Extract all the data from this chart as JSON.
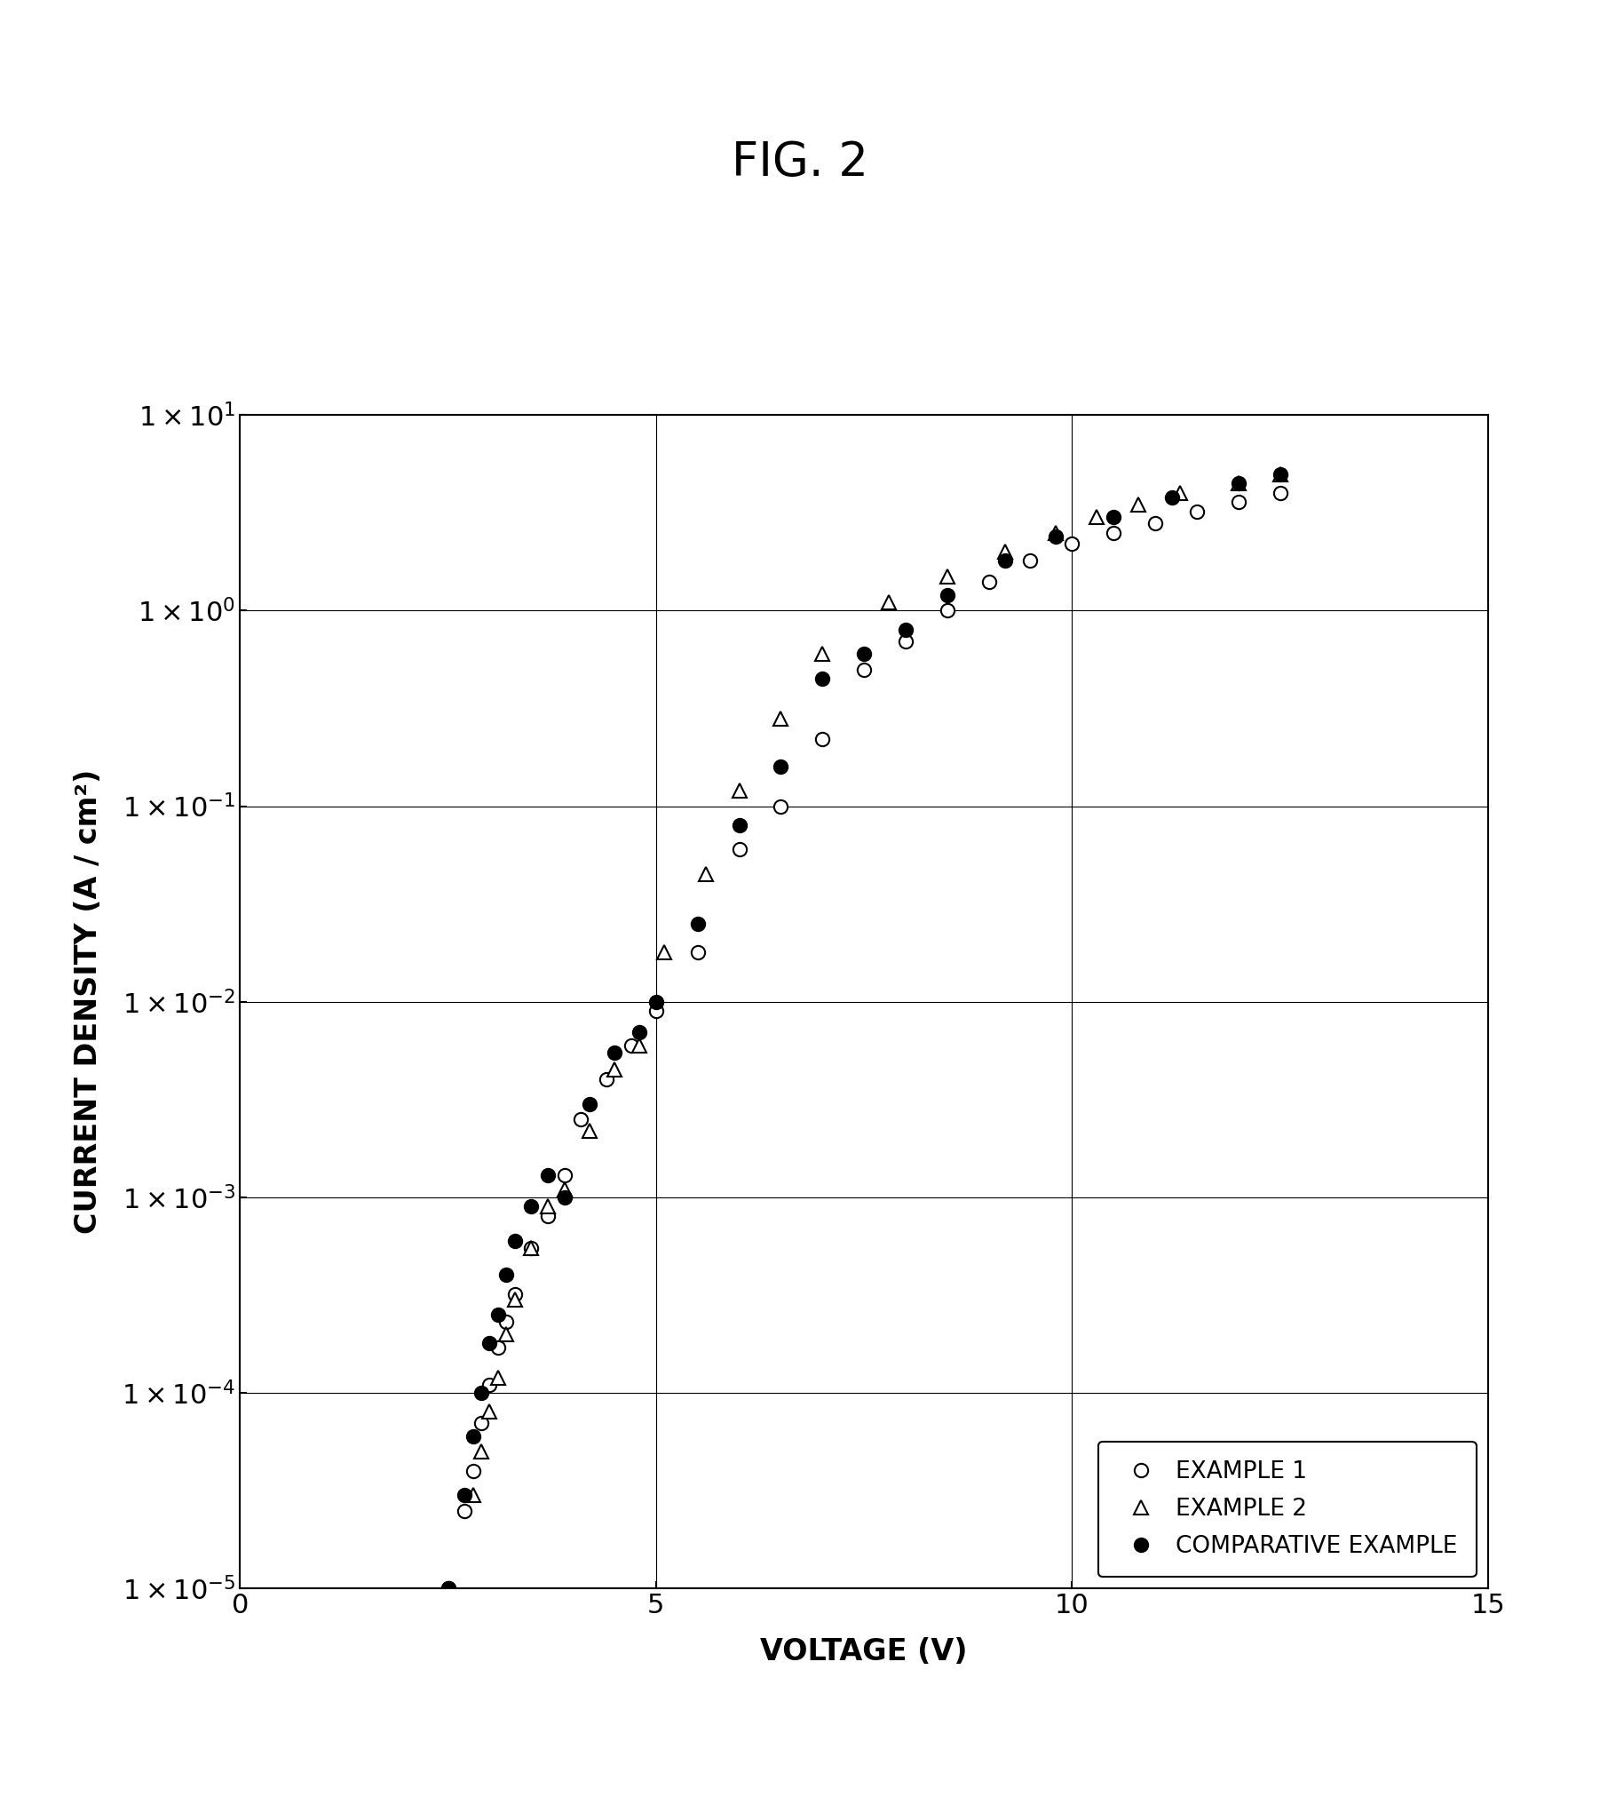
{
  "title": "FIG. 2",
  "xlabel": "VOLTAGE (V)",
  "ylabel": "CURRENT DENSITY (A / cm²)",
  "xlim": [
    0,
    15
  ],
  "ylim_log": [
    -5,
    1
  ],
  "xticks": [
    0,
    5,
    10,
    15
  ],
  "example1_x": [
    2.5,
    2.7,
    2.8,
    2.9,
    3.0,
    3.1,
    3.2,
    3.3,
    3.5,
    3.7,
    3.9,
    4.1,
    4.4,
    4.7,
    5.0,
    5.5,
    6.0,
    6.5,
    7.0,
    7.5,
    8.0,
    8.5,
    9.0,
    9.5,
    10.0,
    10.5,
    11.0,
    11.5,
    12.0,
    12.5
  ],
  "example1_y": [
    1e-05,
    2.5e-05,
    4e-05,
    7e-05,
    0.00011,
    0.00017,
    0.00023,
    0.00032,
    0.00055,
    0.0008,
    0.0013,
    0.0025,
    0.004,
    0.006,
    0.009,
    0.018,
    0.06,
    0.1,
    0.22,
    0.5,
    0.7,
    1.0,
    1.4,
    1.8,
    2.2,
    2.5,
    2.8,
    3.2,
    3.6,
    4.0
  ],
  "example2_x": [
    2.8,
    2.9,
    3.0,
    3.1,
    3.2,
    3.3,
    3.5,
    3.7,
    3.9,
    4.2,
    4.5,
    4.8,
    5.1,
    5.6,
    6.0,
    6.5,
    7.0,
    7.8,
    8.5,
    9.2,
    9.8,
    10.3,
    10.8,
    11.3,
    12.0,
    12.5
  ],
  "example2_y": [
    3e-05,
    5e-05,
    8e-05,
    0.00012,
    0.0002,
    0.0003,
    0.00055,
    0.0009,
    0.0011,
    0.0022,
    0.0045,
    0.006,
    0.018,
    0.045,
    0.12,
    0.28,
    0.6,
    1.1,
    1.5,
    2.0,
    2.5,
    3.0,
    3.5,
    4.0,
    4.5,
    5.0
  ],
  "comp_x": [
    2.5,
    2.7,
    2.8,
    2.9,
    3.0,
    3.1,
    3.2,
    3.3,
    3.5,
    3.7,
    3.9,
    4.2,
    4.5,
    4.8,
    5.0,
    5.5,
    6.0,
    6.5,
    7.0,
    7.5,
    8.0,
    8.5,
    9.2,
    9.8,
    10.5,
    11.2,
    12.0,
    12.5
  ],
  "comp_y": [
    1e-05,
    3e-05,
    6e-05,
    0.0001,
    0.00018,
    0.00025,
    0.0004,
    0.0006,
    0.0009,
    0.0013,
    0.001,
    0.003,
    0.0055,
    0.007,
    0.01,
    0.025,
    0.08,
    0.16,
    0.45,
    0.6,
    0.8,
    1.2,
    1.8,
    2.4,
    3.0,
    3.8,
    4.5,
    5.0
  ],
  "background_color": "#ffffff",
  "title_fontsize": 38,
  "label_fontsize": 24,
  "tick_fontsize": 22,
  "legend_fontsize": 19
}
